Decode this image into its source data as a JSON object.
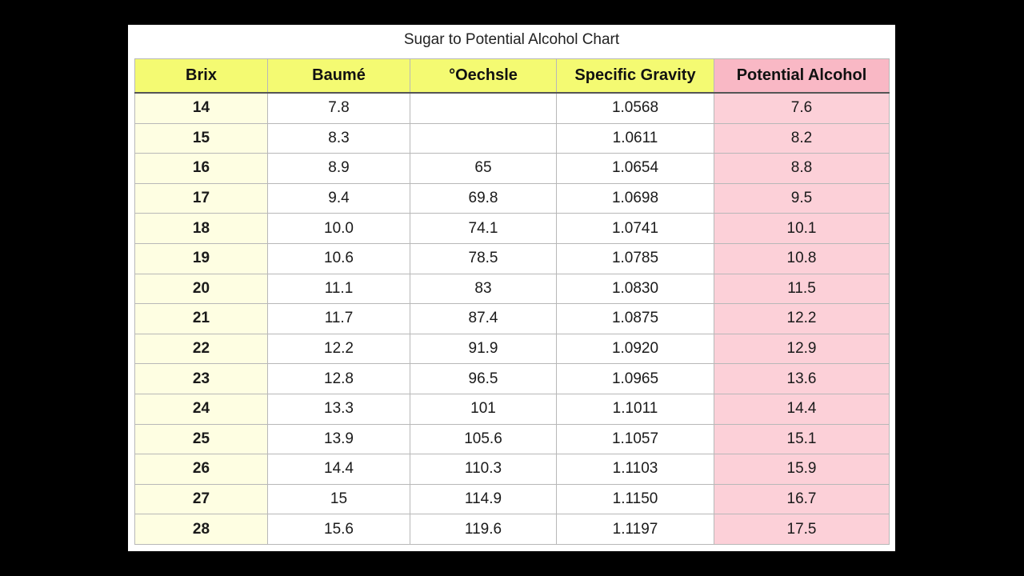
{
  "title": "Sugar to Potential Alcohol Chart",
  "colors": {
    "header_yellow": "#f4fa72",
    "header_pink": "#f9b8c5",
    "brix_column": "#fefee2",
    "alcohol_column": "#fcd0d8",
    "frame": "#000000"
  },
  "columns": [
    "Brix",
    "Baumé",
    "°Oechsle",
    "Specific Gravity",
    "Potential Alcohol"
  ],
  "rows": [
    [
      "14",
      "7.8",
      "",
      "1.0568",
      "7.6"
    ],
    [
      "15",
      "8.3",
      "",
      "1.0611",
      "8.2"
    ],
    [
      "16",
      "8.9",
      "65",
      "1.0654",
      "8.8"
    ],
    [
      "17",
      "9.4",
      "69.8",
      "1.0698",
      "9.5"
    ],
    [
      "18",
      "10.0",
      "74.1",
      "1.0741",
      "10.1"
    ],
    [
      "19",
      "10.6",
      "78.5",
      "1.0785",
      "10.8"
    ],
    [
      "20",
      "11.1",
      "83",
      "1.0830",
      "11.5"
    ],
    [
      "21",
      "11.7",
      "87.4",
      "1.0875",
      "12.2"
    ],
    [
      "22",
      "12.2",
      "91.9",
      "1.0920",
      "12.9"
    ],
    [
      "23",
      "12.8",
      "96.5",
      "1.0965",
      "13.6"
    ],
    [
      "24",
      "13.3",
      "101",
      "1.1011",
      "14.4"
    ],
    [
      "25",
      "13.9",
      "105.6",
      "1.1057",
      "15.1"
    ],
    [
      "26",
      "14.4",
      "110.3",
      "1.1103",
      "15.9"
    ],
    [
      "27",
      "15",
      "114.9",
      "1.1150",
      "16.7"
    ],
    [
      "28",
      "15.6",
      "119.6",
      "1.1197",
      "17.5"
    ]
  ]
}
